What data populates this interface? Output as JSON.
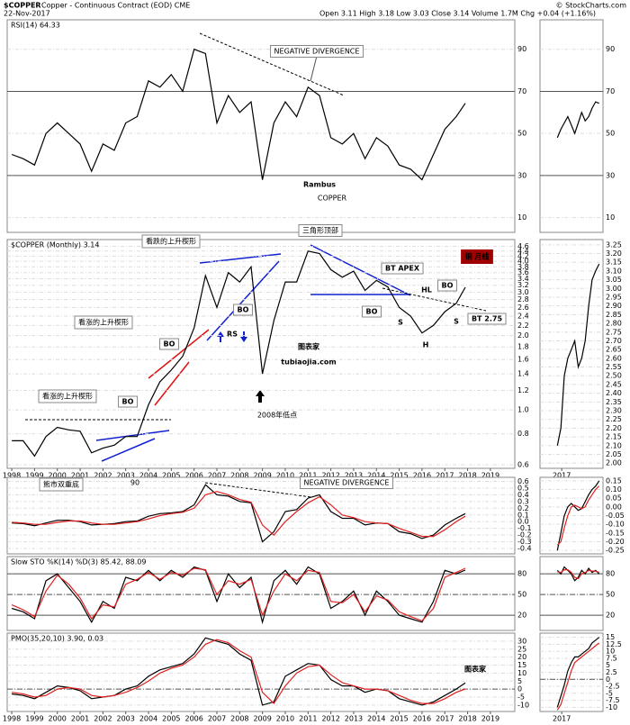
{
  "header": {
    "symbol": "$COPPER",
    "name": "Copper - Continuous Contract (EOD) CME",
    "date": "22-Nov-2017",
    "quote": "Open 3.11  High 3.18  Low 3.03  Close 3.14  Volume 1.7M  Chg +0.04 (+1.16%)",
    "credit": "© StockCharts.com"
  },
  "chart_data": [
    {
      "type": "line",
      "title": "RSI(14) 64.33",
      "x": [
        1998,
        1998.5,
        1999,
        1999.5,
        2000,
        2000.5,
        2001,
        2001.5,
        2002,
        2002.5,
        2003,
        2003.5,
        2004,
        2004.5,
        2005,
        2005.5,
        2006,
        2006.5,
        2007,
        2007.5,
        2008,
        2008.5,
        2009,
        2009.5,
        2010,
        2010.5,
        2011,
        2011.5,
        2012,
        2012.5,
        2013,
        2013.5,
        2014,
        2014.5,
        2015,
        2015.5,
        2016,
        2016.5,
        2017,
        2017.5,
        2017.9
      ],
      "xlim": [
        1997.8,
        2020.07
      ],
      "ylim": [
        3,
        104
      ],
      "yticks": [
        10,
        30,
        50,
        70,
        90
      ],
      "series": [
        {
          "color": "#000000",
          "values": [
            40,
            38,
            35,
            50,
            55,
            50,
            45,
            32,
            45,
            42,
            55,
            58,
            75,
            72,
            78,
            70,
            90,
            88,
            55,
            68,
            60,
            65,
            28,
            55,
            65,
            58,
            72,
            68,
            48,
            45,
            50,
            38,
            48,
            44,
            35,
            33,
            28,
            40,
            52,
            58,
            64.33
          ]
        }
      ],
      "annotations": [
        "NEGATIVE DIVERGENCE",
        "Rambus",
        "COPPER"
      ]
    },
    {
      "type": "line",
      "title": "$COPPER (Monthly) 3.14",
      "log_scale": true,
      "x": [
        1998,
        1998.5,
        1999,
        1999.5,
        2000,
        2000.5,
        2001,
        2001.5,
        2002,
        2002.5,
        2003,
        2003.5,
        2004,
        2004.5,
        2005,
        2005.5,
        2006,
        2006.5,
        2007,
        2007.5,
        2008,
        2008.5,
        2009,
        2009.5,
        2010,
        2010.5,
        2011,
        2011.5,
        2012,
        2012.5,
        2013,
        2013.5,
        2014,
        2014.5,
        2015,
        2015.5,
        2016,
        2016.5,
        2017,
        2017.5,
        2017.9
      ],
      "xlim": [
        1997.8,
        2020.07
      ],
      "ylim": [
        0.58,
        4.9
      ],
      "yticks": [
        0.6,
        0.8,
        {
          "value": 1,
          "label": "1.0"
        },
        1.2,
        1.4,
        1.6,
        1.8,
        {
          "value": 2,
          "label": "2.0"
        },
        2.2,
        2.4,
        2.6,
        2.8,
        {
          "value": 3,
          "label": "3.0"
        },
        3.2,
        3.4,
        3.6,
        3.8,
        {
          "value": 4,
          "label": "4.0"
        },
        4.2,
        4.4,
        4.6
      ],
      "xticks": [
        1998,
        1999,
        2000,
        2001,
        2002,
        2003,
        2004,
        2005,
        2006,
        2007,
        2008,
        2009,
        2010,
        2011,
        2012,
        2013,
        2014,
        2015,
        2016,
        2017,
        2018,
        2019
      ],
      "series": [
        {
          "color": "#000000",
          "values": [
            0.75,
            0.75,
            0.65,
            0.78,
            0.85,
            0.83,
            0.82,
            0.67,
            0.7,
            0.72,
            0.78,
            0.78,
            1.05,
            1.3,
            1.45,
            1.65,
            2.15,
            3.5,
            2.6,
            3.6,
            3.3,
            3.8,
            1.4,
            2.3,
            3.3,
            3.3,
            4.4,
            4.3,
            3.7,
            3.45,
            3.65,
            3.05,
            3.35,
            3.15,
            2.6,
            2.4,
            2.05,
            2.2,
            2.5,
            2.7,
            3.14
          ]
        }
      ],
      "annotations": [
        "看跌的上升楔形",
        "看涨的上升楔形",
        "看涨的上升楔形",
        "BO",
        "BO",
        "BO",
        "RS",
        "2008年低点",
        "三角形顶部",
        "BT APEX",
        "HL",
        "S",
        "H",
        "S",
        "BT 2.75",
        "BO",
        "BO",
        "铜   月线",
        "图表家",
        "tubiaojia.com"
      ]
    },
    {
      "type": "line",
      "x": [
        1998,
        1998.5,
        1999,
        1999.5,
        2000,
        2000.5,
        2001,
        2001.5,
        2002,
        2002.5,
        2003,
        2003.5,
        2004,
        2004.5,
        2005,
        2005.5,
        2006,
        2006.5,
        2007,
        2007.5,
        2008,
        2008.5,
        2009,
        2009.5,
        2010,
        2010.5,
        2011,
        2011.5,
        2012,
        2012.5,
        2013,
        2013.5,
        2014,
        2014.5,
        2015,
        2015.5,
        2016,
        2016.5,
        2017,
        2017.5,
        2017.9
      ],
      "xlim": [
        1997.8,
        2020.07
      ],
      "ylim": [
        -0.48,
        0.66
      ],
      "yticks": [
        -0.4,
        -0.3,
        -0.2,
        -0.1,
        {
          "value": 0,
          "label": "0.0"
        },
        0.1,
        0.2,
        0.3,
        0.4,
        0.5,
        0.6
      ],
      "series": [
        {
          "color": "#000000",
          "values": [
            -0.02,
            -0.03,
            -0.06,
            -0.02,
            0.02,
            0.02,
            0,
            -0.05,
            -0.04,
            -0.03,
            0,
            0.01,
            0.08,
            0.12,
            0.13,
            0.15,
            0.25,
            0.55,
            0.4,
            0.38,
            0.3,
            0.28,
            -0.3,
            -0.15,
            0.15,
            0.18,
            0.35,
            0.4,
            0.15,
            0.05,
            0.05,
            -0.05,
            -0.02,
            -0.03,
            -0.15,
            -0.18,
            -0.25,
            -0.2,
            -0.05,
            0.05,
            0.12
          ]
        },
        {
          "color": "#e02020",
          "values": [
            -0.01,
            -0.02,
            -0.04,
            -0.04,
            -0.01,
            0.01,
            0.01,
            -0.02,
            -0.04,
            -0.04,
            -0.02,
            0,
            0.04,
            0.09,
            0.12,
            0.14,
            0.2,
            0.4,
            0.45,
            0.4,
            0.33,
            0.29,
            -0.05,
            -0.2,
            0,
            0.15,
            0.28,
            0.37,
            0.25,
            0.1,
            0.06,
            0,
            -0.02,
            -0.03,
            -0.1,
            -0.16,
            -0.22,
            -0.22,
            -0.12,
            0,
            0.08
          ]
        }
      ],
      "annotations": [
        "熊市双重底",
        "90",
        "NEGATIVE DIVERGENCE"
      ]
    },
    {
      "type": "line",
      "title": "Slow STO %K(14) %D(3) 85.42, 88.09",
      "x": [
        1998,
        1998.5,
        1999,
        1999.5,
        2000,
        2000.5,
        2001,
        2001.5,
        2002,
        2002.5,
        2003,
        2003.5,
        2004,
        2004.5,
        2005,
        2005.5,
        2006,
        2006.5,
        2007,
        2007.5,
        2008,
        2008.5,
        2009,
        2009.5,
        2010,
        2010.5,
        2011,
        2011.5,
        2012,
        2012.5,
        2013,
        2013.5,
        2014,
        2014.5,
        2015,
        2015.5,
        2016,
        2016.5,
        2017,
        2017.5,
        2017.9
      ],
      "xlim": [
        1997.8,
        2020.07
      ],
      "ylim": [
        -2,
        105
      ],
      "yticks": [
        20,
        50,
        80
      ],
      "series": [
        {
          "color": "#000000",
          "values": [
            30,
            25,
            15,
            70,
            80,
            60,
            40,
            10,
            40,
            30,
            75,
            70,
            85,
            70,
            85,
            75,
            90,
            85,
            40,
            80,
            60,
            75,
            10,
            70,
            85,
            65,
            90,
            80,
            30,
            40,
            55,
            20,
            55,
            40,
            20,
            15,
            10,
            40,
            85,
            80,
            85.42
          ]
        },
        {
          "color": "#e02020",
          "values": [
            35,
            28,
            18,
            55,
            78,
            65,
            45,
            15,
            35,
            32,
            65,
            72,
            82,
            72,
            82,
            78,
            88,
            86,
            50,
            70,
            65,
            72,
            20,
            55,
            80,
            70,
            85,
            82,
            40,
            38,
            50,
            25,
            48,
            42,
            25,
            18,
            12,
            30,
            75,
            82,
            88.09
          ]
        }
      ]
    },
    {
      "type": "line",
      "title": "PMO(35,20,10) 3.90, 0.03",
      "x": [
        1998,
        1998.5,
        1999,
        1999.5,
        2000,
        2000.5,
        2001,
        2001.5,
        2002,
        2002.5,
        2003,
        2003.5,
        2004,
        2004.5,
        2005,
        2005.5,
        2006,
        2006.5,
        2007,
        2007.5,
        2008,
        2008.5,
        2009,
        2009.5,
        2010,
        2010.5,
        2011,
        2011.5,
        2012,
        2012.5,
        2013,
        2013.5,
        2014,
        2014.5,
        2015,
        2015.5,
        2016,
        2016.5,
        2017,
        2017.5,
        2017.9
      ],
      "xlim": [
        1997.8,
        2020.07
      ],
      "ylim": [
        -14,
        35
      ],
      "yticks": [
        -10,
        -5,
        0,
        5,
        10,
        15,
        20,
        25,
        30
      ],
      "xticks": [
        1998,
        1999,
        2000,
        2001,
        2002,
        2003,
        2004,
        2005,
        2006,
        2007,
        2008,
        2009,
        2010,
        2011,
        2012,
        2013,
        2014,
        2015,
        2016,
        2017,
        2018,
        2019
      ],
      "series": [
        {
          "color": "#000000",
          "values": [
            -3,
            -4,
            -6,
            -2,
            2,
            1,
            -1,
            -6,
            -5,
            -4,
            0,
            2,
            8,
            12,
            14,
            16,
            22,
            32,
            30,
            28,
            22,
            18,
            -10,
            -8,
            8,
            12,
            16,
            15,
            6,
            2,
            2,
            -2,
            0,
            -1,
            -6,
            -8,
            -10,
            -8,
            -4,
            0,
            3.9
          ]
        },
        {
          "color": "#e02020",
          "values": [
            -2,
            -3,
            -5,
            -4,
            0,
            1,
            0,
            -4,
            -5,
            -4,
            -2,
            1,
            5,
            10,
            13,
            15,
            20,
            28,
            31,
            29,
            24,
            20,
            -2,
            -9,
            2,
            10,
            14,
            15,
            9,
            4,
            2,
            0,
            0,
            -1,
            -4,
            -7,
            -9,
            -9,
            -6,
            -2,
            0.03
          ]
        }
      ],
      "annotations": [
        "图表家"
      ]
    },
    {
      "type": "line",
      "x": [
        2016.9,
        2016.98,
        2017.06,
        2017.14,
        2017.22,
        2017.3,
        2017.38,
        2017.46,
        2017.54,
        2017.62,
        2017.7,
        2017.78,
        2017.86
      ],
      "xlim": [
        2016.5,
        2017.95
      ],
      "ylim": [
        3,
        104
      ],
      "yticks": [
        10,
        30,
        50,
        70,
        90
      ],
      "series": [
        {
          "color": "#000000",
          "values": [
            48,
            52,
            55,
            58,
            54,
            50,
            55,
            60,
            56,
            58,
            62,
            65,
            64.33
          ]
        }
      ]
    },
    {
      "type": "line",
      "x": [
        2016.9,
        2016.98,
        2017.06,
        2017.14,
        2017.22,
        2017.3,
        2017.38,
        2017.46,
        2017.54,
        2017.62,
        2017.7,
        2017.78,
        2017.86
      ],
      "xlim": [
        2016.5,
        2017.95
      ],
      "ylim": [
        1.97,
        3.28
      ],
      "yticks": [
        {
          "value": 2,
          "label": "2.00"
        },
        2.05,
        {
          "value": 2.1,
          "label": "2.10"
        },
        2.15,
        {
          "value": 2.2,
          "label": "2.20"
        },
        2.25,
        {
          "value": 2.3,
          "label": "2.30"
        },
        2.35,
        {
          "value": 2.4,
          "label": "2.40"
        },
        2.45,
        {
          "value": 2.5,
          "label": "2.50"
        },
        2.55,
        {
          "value": 2.6,
          "label": "2.60"
        },
        2.65,
        {
          "value": 2.7,
          "label": "2.70"
        },
        2.75,
        {
          "value": 2.8,
          "label": "2.80"
        },
        2.85,
        {
          "value": 2.9,
          "label": "2.90"
        },
        2.95,
        {
          "value": 3,
          "label": "3.00"
        },
        3.05,
        {
          "value": 3.1,
          "label": "3.10"
        },
        3.15,
        {
          "value": 3.2,
          "label": "3.20"
        },
        3.25
      ],
      "xticks": [
        2017
      ],
      "series": [
        {
          "color": "#000000",
          "values": [
            2.1,
            2.2,
            2.5,
            2.6,
            2.65,
            2.7,
            2.55,
            2.6,
            2.7,
            2.9,
            3.05,
            3.1,
            3.14
          ]
        }
      ]
    },
    {
      "type": "line",
      "x": [
        2016.9,
        2016.98,
        2017.06,
        2017.14,
        2017.22,
        2017.3,
        2017.38,
        2017.46,
        2017.54,
        2017.62,
        2017.7,
        2017.78,
        2017.86
      ],
      "xlim": [
        2016.5,
        2017.95
      ],
      "ylim": [
        -0.27,
        0.17
      ],
      "yticks": [
        -0.25,
        {
          "value": -0.2,
          "label": "-0.20"
        },
        -0.15,
        {
          "value": -0.1,
          "label": "-0.10"
        },
        -0.05,
        {
          "value": 0,
          "label": "0.00"
        },
        0.05,
        {
          "value": 0.1,
          "label": "0.10"
        },
        0.15
      ],
      "series": [
        {
          "color": "#000000",
          "values": [
            -0.25,
            -0.15,
            -0.05,
            0,
            0.02,
            0,
            -0.02,
            -0.01,
            0.03,
            0.07,
            0.1,
            0.12,
            0.15
          ]
        },
        {
          "color": "#e02020",
          "values": [
            -0.22,
            -0.2,
            -0.12,
            -0.05,
            0,
            0.01,
            0,
            -0.01,
            0,
            0.04,
            0.07,
            0.1,
            0.12
          ]
        }
      ]
    },
    {
      "type": "line",
      "x": [
        2016.9,
        2016.98,
        2017.06,
        2017.14,
        2017.22,
        2017.3,
        2017.38,
        2017.46,
        2017.54,
        2017.62,
        2017.7,
        2017.78,
        2017.86
      ],
      "xlim": [
        2016.5,
        2017.95
      ],
      "ylim": [
        -2,
        105
      ],
      "yticks": [
        20,
        50,
        80
      ],
      "series": [
        {
          "color": "#000000",
          "values": [
            85,
            80,
            90,
            85,
            80,
            70,
            75,
            85,
            80,
            88,
            82,
            85,
            80
          ]
        },
        {
          "color": "#e02020",
          "values": [
            83,
            82,
            86,
            86,
            82,
            75,
            73,
            80,
            82,
            85,
            84,
            84,
            82
          ]
        }
      ]
    },
    {
      "type": "line",
      "x": [
        2016.9,
        2016.98,
        2017.06,
        2017.14,
        2017.22,
        2017.3,
        2017.38,
        2017.46,
        2017.54,
        2017.62,
        2017.7,
        2017.78,
        2017.86
      ],
      "xlim": [
        2016.5,
        2017.95
      ],
      "ylim": [
        -11.5,
        16.5
      ],
      "yticks": [
        -10,
        -7.5,
        -5,
        -2.5,
        0,
        2.5,
        5,
        7.5,
        10,
        12.5,
        15
      ],
      "xticks": [
        2017
      ],
      "series": [
        {
          "color": "#000000",
          "values": [
            -10,
            -6,
            -2,
            3,
            6,
            8,
            8,
            9,
            10,
            11,
            13,
            14,
            15
          ]
        },
        {
          "color": "#e02020",
          "values": [
            -11,
            -9,
            -5,
            -1,
            3,
            6,
            7,
            8,
            9,
            10,
            11,
            12,
            13
          ]
        }
      ]
    }
  ]
}
